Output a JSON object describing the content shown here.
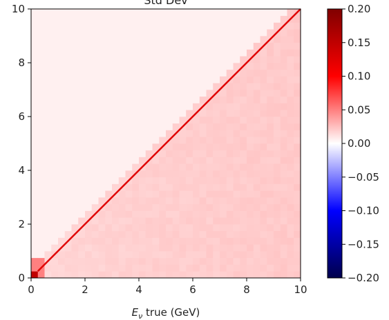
{
  "chart_data": {
    "type": "heatmap",
    "title": "Std Dev",
    "xlabel_prefix": "E",
    "xlabel_sub": "ν",
    "xlabel_suffix": " true (GeV)",
    "ylabel": "",
    "xlim": [
      0,
      10
    ],
    "ylim": [
      0,
      10
    ],
    "x_ticks": [
      0,
      2,
      4,
      6,
      8,
      10
    ],
    "y_ticks": [
      0,
      2,
      4,
      6,
      8,
      10
    ],
    "x_tick_labels": [
      "0",
      "2",
      "4",
      "6",
      "8",
      "10"
    ],
    "y_tick_labels": [
      "0",
      "2",
      "4",
      "6",
      "8",
      "10"
    ],
    "bins": 40,
    "diagonal_line": {
      "from": [
        0.25,
        0.25
      ],
      "to": [
        10,
        10
      ],
      "color": "#e00000"
    },
    "colorbar": {
      "colormap": "seismic",
      "min": -0.2,
      "max": 0.2,
      "ticks": [
        0.2,
        0.15,
        0.1,
        0.05,
        0.0,
        -0.05,
        -0.1,
        -0.15,
        -0.2
      ],
      "tick_labels": [
        "0.20",
        "0.15",
        "0.10",
        "0.05",
        "0.00",
        "−0.05",
        "−0.10",
        "−0.15",
        "−0.20"
      ]
    },
    "value_model": {
      "above_diagonal": 0.006,
      "below_diagonal_base": 0.014,
      "below_diagonal_scale": 0.0022,
      "hot_cell": {
        "x_range": [
          0,
          0.25
        ],
        "y_range": [
          0,
          0.25
        ],
        "value": 0.15
      },
      "near_cells": {
        "x_range": [
          0,
          0.5
        ],
        "y_range": [
          0,
          0.75
        ],
        "value": 0.05
      }
    }
  }
}
